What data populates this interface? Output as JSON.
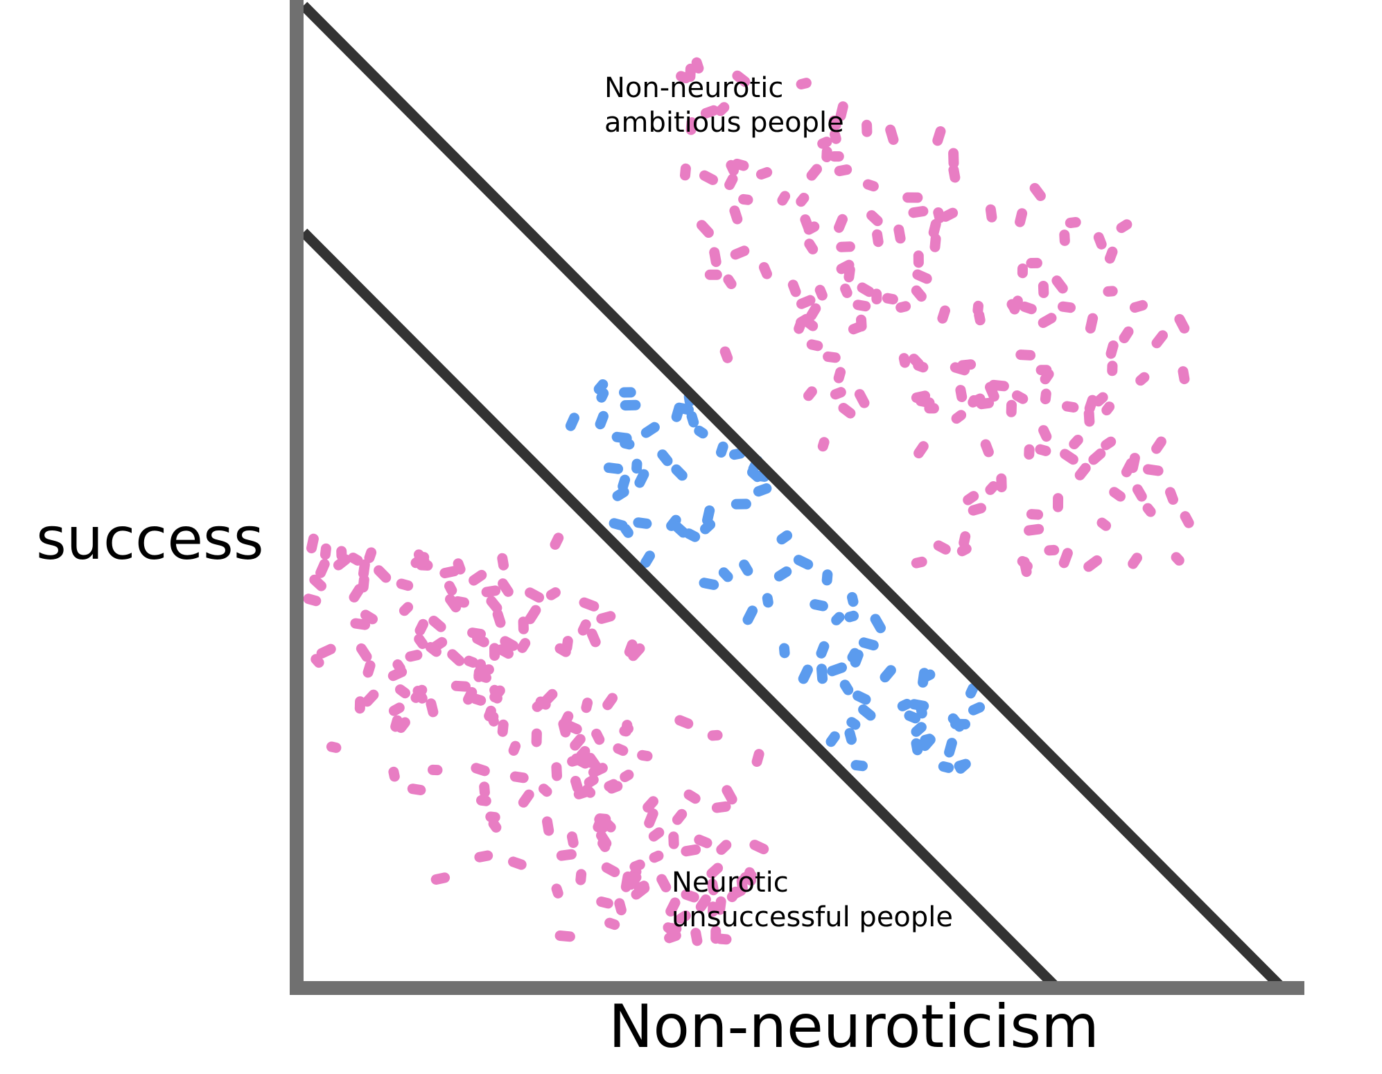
{
  "diagram": {
    "y_axis_label": "success",
    "x_axis_label": "Non-neuroticism",
    "annotations": {
      "top": [
        "Non-neurotic",
        "ambitious people"
      ],
      "bottom": [
        "Neurotic",
        "unsuccessful people"
      ]
    },
    "colors": {
      "axis": "#707070",
      "boundary": "#333333",
      "group_pink": "#e87dc3",
      "group_blue": "#5b9bee",
      "background": "#ffffff"
    },
    "groups": [
      {
        "id": "upper-right-cluster",
        "color_key": "group_pink",
        "seed": 11,
        "count": 175
      },
      {
        "id": "middle-band-cluster",
        "color_key": "group_blue",
        "seed": 23,
        "count": 85
      },
      {
        "id": "lower-left-cluster",
        "color_key": "group_pink",
        "seed": 37,
        "count": 190
      }
    ]
  }
}
